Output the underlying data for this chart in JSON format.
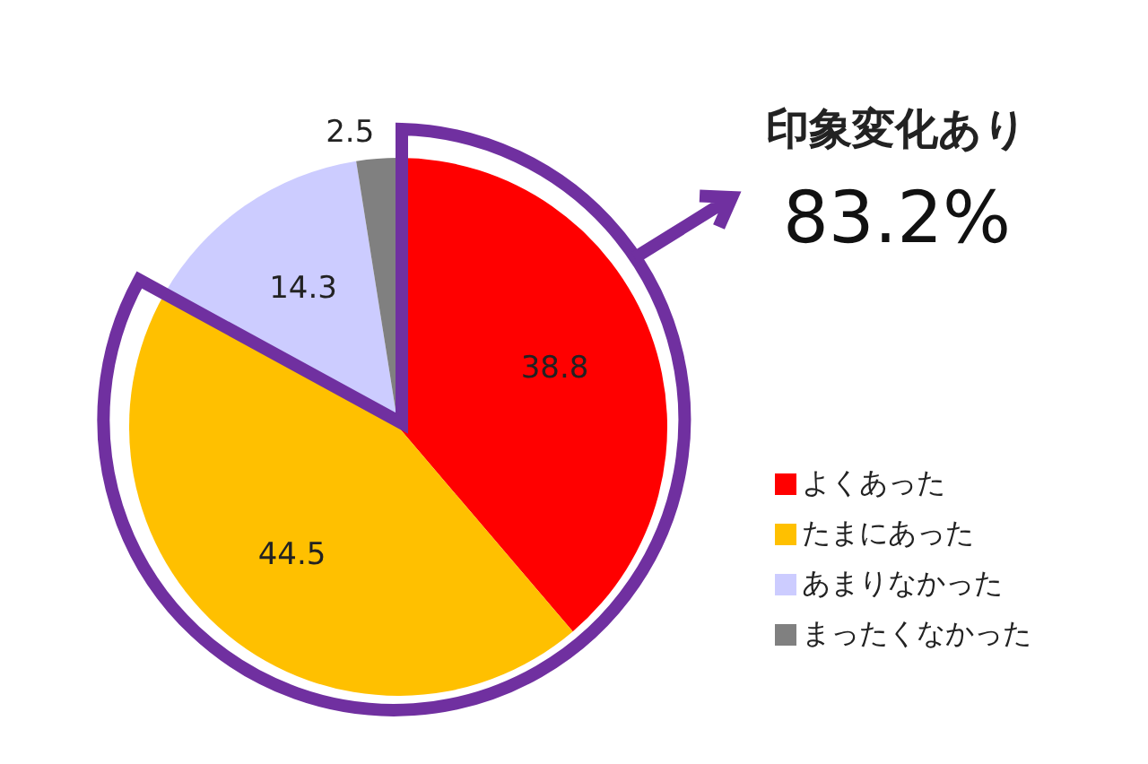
{
  "chart_data": {
    "type": "pie",
    "categories": [
      "よくあった",
      "たまにあった",
      "あまりなかった",
      "まったくなかった"
    ],
    "values": [
      38.8,
      44.5,
      14.3,
      2.5
    ],
    "colors": [
      "#ff0000",
      "#ffc000",
      "#ccccff",
      "#808080"
    ],
    "data_labels": true,
    "legend": "right",
    "annotations": [
      "印象変化あり",
      "83.2%"
    ]
  }
}
